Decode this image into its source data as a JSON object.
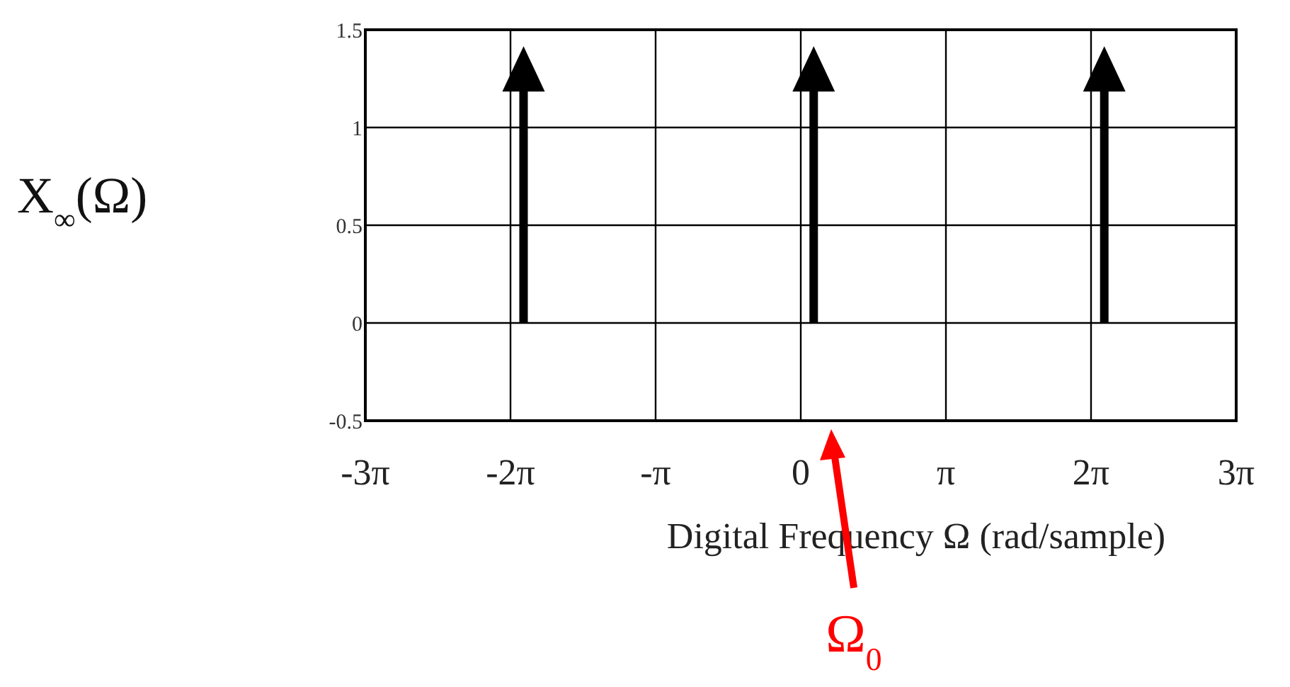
{
  "chart_data": {
    "type": "lollipop",
    "xlabel": "Digital Frequency Ω (rad/sample)",
    "ylabel": "X$_{∞}$(Ω)",
    "x": [
      -6.0,
      0.28,
      6.57
    ],
    "values": [
      1.3,
      1.3,
      1.3
    ],
    "color": "#000000",
    "marker": "triangle",
    "xlim": [
      -9.425,
      9.425
    ],
    "xticks": [
      {
        "value": -9.425,
        "label": "-3π"
      },
      {
        "value": -6.283,
        "label": "-2π"
      },
      {
        "value": -3.142,
        "label": "-π"
      },
      0,
      {
        "value": 3.142,
        "label": "π"
      },
      {
        "value": 6.283,
        "label": "2π"
      },
      {
        "value": 9.425,
        "label": "3π"
      }
    ],
    "ylim": [
      -0.5,
      1.5
    ],
    "yticks": [
      -0.5,
      0,
      0.5,
      1,
      1.5
    ],
    "grid": true,
    "annotations": [
      "Ω$_{0}$"
    ]
  }
}
